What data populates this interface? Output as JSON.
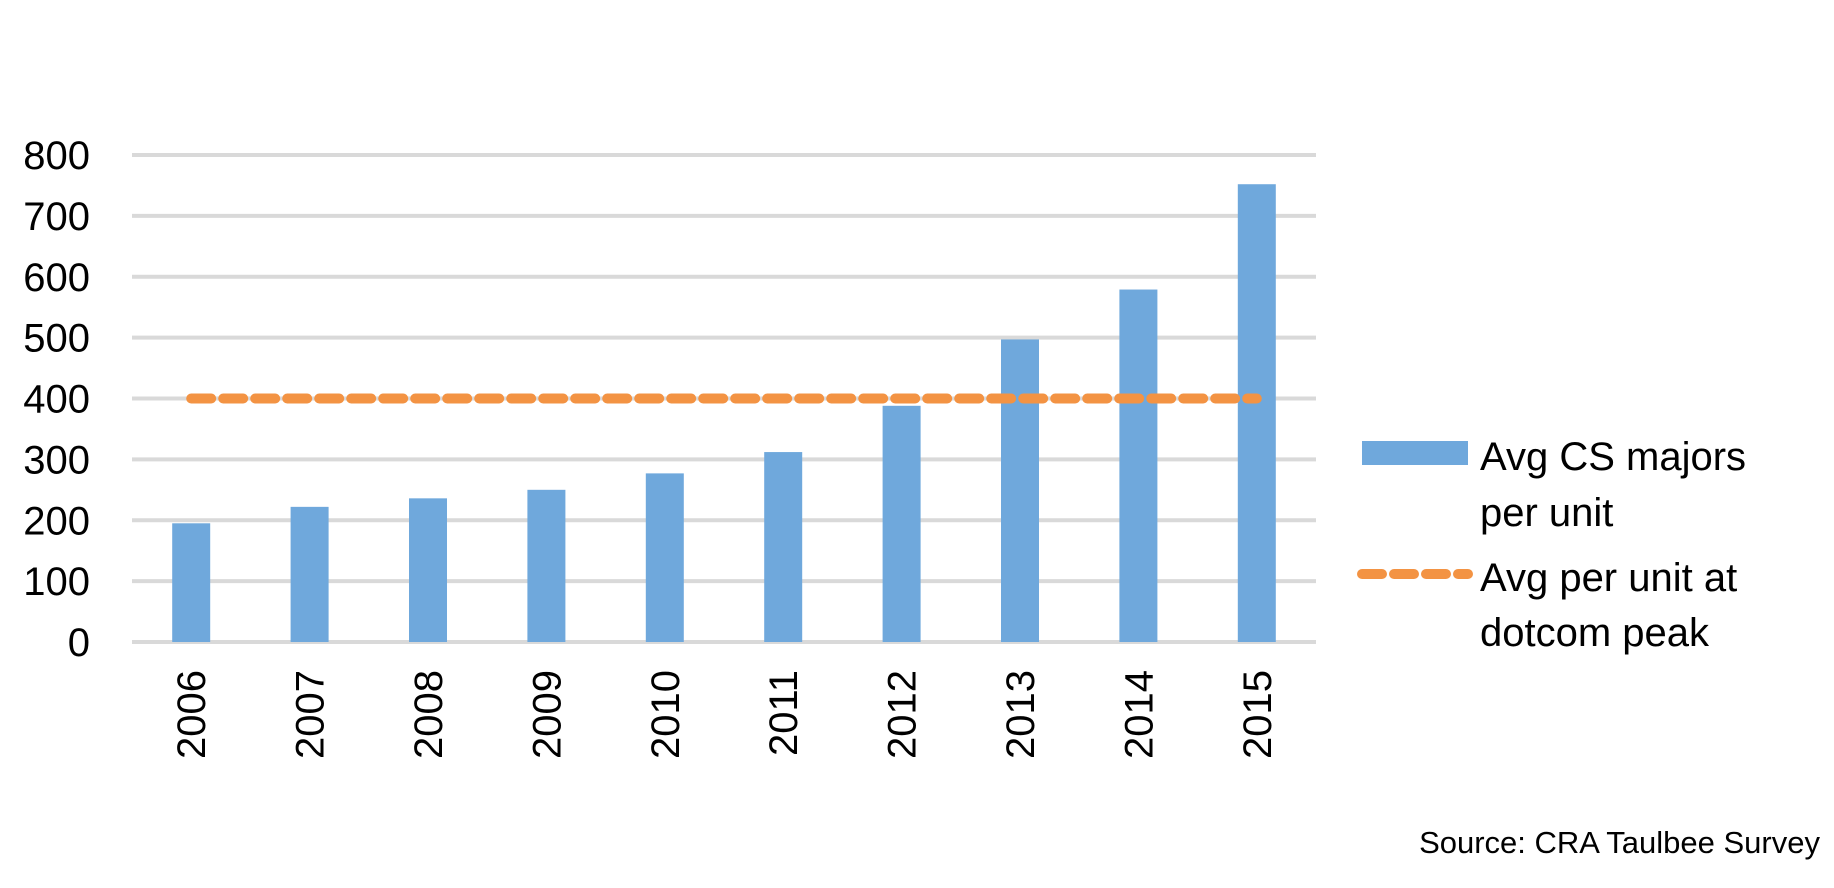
{
  "chart_data": {
    "type": "bar",
    "categories": [
      "2006",
      "2007",
      "2008",
      "2009",
      "2010",
      "2011",
      "2012",
      "2013",
      "2014",
      "2015"
    ],
    "series": [
      {
        "name": "Avg CS majors per unit",
        "type": "bar",
        "color": "#6fa8dc",
        "values": [
          195,
          222,
          236,
          250,
          277,
          312,
          388,
          497,
          579,
          752
        ]
      },
      {
        "name": "Avg per unit at dotcom peak",
        "type": "line",
        "style": "dashed",
        "color": "#f39343",
        "values": [
          400,
          400,
          400,
          400,
          400,
          400,
          400,
          400,
          400,
          400
        ]
      }
    ],
    "y_ticks": [
      "0",
      "100",
      "200",
      "300",
      "400",
      "500",
      "600",
      "700",
      "800"
    ],
    "ylim": [
      0,
      800
    ],
    "grid": true,
    "legend": {
      "position": "right",
      "items": [
        {
          "lines": [
            "Avg CS majors",
            "per unit"
          ],
          "symbol": "bar"
        },
        {
          "lines": [
            "Avg per unit at",
            "dotcom peak"
          ],
          "symbol": "dashed-line"
        }
      ]
    },
    "x_tick_rotation": "vertical",
    "grid_color": "#d9d9d9",
    "source_note": "Source: CRA Taulbee Survey"
  }
}
